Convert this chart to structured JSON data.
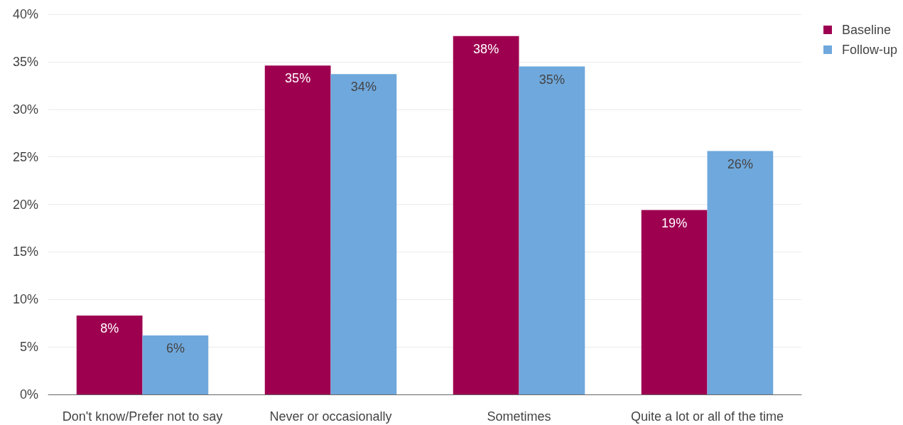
{
  "chart_data": {
    "type": "bar",
    "categories": [
      "Don't know/Prefer not to say",
      "Never or occasionally",
      "Sometimes",
      "Quite a lot or all of the time"
    ],
    "series": [
      {
        "name": "Baseline",
        "color": "#9e0050",
        "values": [
          8.3,
          34.6,
          37.7,
          19.4
        ],
        "value_labels": [
          "8%",
          "35%",
          "38%",
          "19%"
        ]
      },
      {
        "name": "Follow-up",
        "color": "#6fa8dc",
        "values": [
          6.2,
          33.7,
          34.5,
          25.6
        ],
        "value_labels": [
          "6%",
          "34%",
          "35%",
          "26%"
        ]
      }
    ],
    "ylim": [
      0,
      40
    ],
    "yticks": [
      {
        "value": 0,
        "label": "0%"
      },
      {
        "value": 5,
        "label": "5%"
      },
      {
        "value": 10,
        "label": "10%"
      },
      {
        "value": 15,
        "label": "15%"
      },
      {
        "value": 20,
        "label": "20%"
      },
      {
        "value": 25,
        "label": "25%"
      },
      {
        "value": 30,
        "label": "30%"
      },
      {
        "value": 35,
        "label": "35%"
      },
      {
        "value": 40,
        "label": "40%"
      }
    ],
    "grid": "y",
    "legend": "top right"
  }
}
